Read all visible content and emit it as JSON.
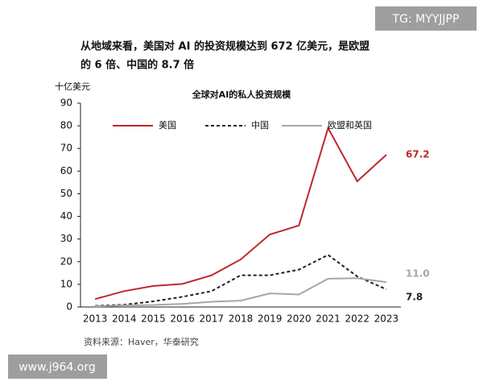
{
  "watermark_top": "TG: MYYJJPP",
  "watermark_bottom": "www.j964.org",
  "chart_data": {
    "type": "line",
    "headline": [
      "从地域来看，美国对 AI 的投资规模达到 672 亿美元，是欧盟",
      "的 6 倍、中国的 8.7 倍"
    ],
    "title": "全球对AI的私人投资规模",
    "y_label": "十亿美元",
    "source": "资料来源：Haver，华泰研究",
    "categories": [
      "2013",
      "2014",
      "2015",
      "2016",
      "2017",
      "2018",
      "2019",
      "2020",
      "2021",
      "2022",
      "2023"
    ],
    "series": [
      {
        "name": "美国",
        "color": "#c0282d",
        "dash": "solid",
        "values": [
          3.5,
          7,
          9.3,
          10.2,
          14,
          21,
          32,
          36,
          79,
          55.5,
          67.2
        ],
        "value_labels": [
          null,
          null,
          null,
          null,
          null,
          null,
          null,
          null,
          null,
          null,
          "67.2"
        ]
      },
      {
        "name": "中国",
        "color": "#222222",
        "dash": "dashed",
        "values": [
          0.5,
          1,
          2.5,
          4.5,
          7,
          14,
          14,
          16.5,
          23,
          13.5,
          7.8
        ],
        "value_labels": [
          null,
          null,
          null,
          null,
          null,
          null,
          null,
          null,
          null,
          null,
          "7.8"
        ]
      },
      {
        "name": "欧盟和英国",
        "color": "#a6a6a6",
        "dash": "solid",
        "values": [
          0.3,
          0.7,
          0.9,
          1.4,
          2.3,
          2.8,
          6,
          5.5,
          12.5,
          12.7,
          11.0
        ],
        "value_labels": [
          null,
          null,
          null,
          null,
          null,
          null,
          null,
          null,
          null,
          null,
          "11.0"
        ]
      }
    ],
    "ylim": [
      0,
      90
    ],
    "yticks": [
      0,
      10,
      20,
      30,
      40,
      50,
      60,
      70,
      80,
      90
    ],
    "grid": false,
    "legend": "top"
  }
}
